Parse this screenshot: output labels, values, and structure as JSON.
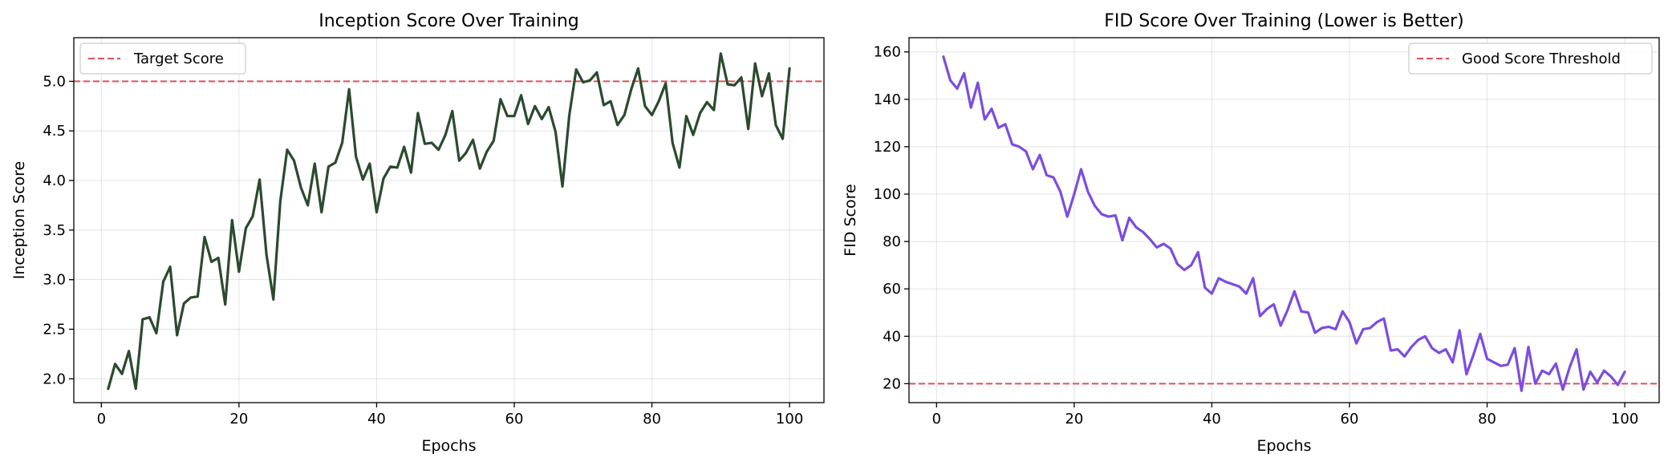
{
  "chart_data": [
    {
      "type": "line",
      "title": "Inception Score Over Training",
      "xlabel": "Epochs",
      "ylabel": "Inception Score",
      "xlim": [
        -4,
        105
      ],
      "ylim": [
        1.76,
        5.44
      ],
      "xticks": [
        0,
        20,
        40,
        60,
        80,
        100
      ],
      "yticks": [
        2.0,
        2.5,
        3.0,
        3.5,
        4.0,
        4.5,
        5.0
      ],
      "ytick_decimals": 1,
      "grid": true,
      "legend_position": "top-left",
      "reference_line": {
        "name": "Target Score",
        "value": 5.0,
        "color": "#e0505a"
      },
      "series": [
        {
          "color": "#2b4a2e",
          "x_start": 1,
          "values": [
            1.9,
            2.15,
            2.05,
            2.28,
            1.9,
            2.6,
            2.62,
            2.46,
            2.98,
            3.13,
            2.44,
            2.76,
            2.82,
            2.83,
            3.43,
            3.18,
            3.22,
            2.75,
            3.6,
            3.08,
            3.52,
            3.64,
            4.01,
            3.25,
            2.8,
            3.79,
            4.31,
            4.2,
            3.93,
            3.75,
            4.17,
            3.68,
            4.14,
            4.18,
            4.38,
            4.92,
            4.24,
            4.01,
            4.17,
            3.68,
            4.02,
            4.14,
            4.13,
            4.34,
            4.08,
            4.68,
            4.37,
            4.38,
            4.31,
            4.46,
            4.7,
            4.2,
            4.28,
            4.41,
            4.12,
            4.29,
            4.4,
            4.82,
            4.65,
            4.65,
            4.86,
            4.57,
            4.75,
            4.62,
            4.74,
            4.49,
            3.94,
            4.66,
            5.12,
            4.99,
            5.01,
            5.09,
            4.76,
            4.8,
            4.56,
            4.66,
            4.92,
            5.13,
            4.75,
            4.66,
            4.8,
            4.98,
            4.38,
            4.13,
            4.65,
            4.46,
            4.68,
            4.79,
            4.71,
            5.28,
            4.97,
            4.96,
            5.04,
            4.52,
            5.18,
            4.85,
            5.08,
            4.56,
            4.42,
            5.13
          ]
        }
      ]
    },
    {
      "type": "line",
      "title": "FID Score Over Training (Lower is Better)",
      "xlabel": "Epochs",
      "ylabel": "FID Score",
      "xlim": [
        -4,
        105
      ],
      "ylim": [
        12,
        166
      ],
      "xticks": [
        0,
        20,
        40,
        60,
        80,
        100
      ],
      "yticks": [
        20,
        40,
        60,
        80,
        100,
        120,
        140,
        160
      ],
      "ytick_decimals": 0,
      "grid": true,
      "legend_position": "top-right",
      "reference_line": {
        "name": "Good Score Threshold",
        "value": 20,
        "color": "#e0505a"
      },
      "series": [
        {
          "color": "#7b4de0",
          "x_start": 1,
          "values": [
            158.0,
            148.0,
            144.5,
            151.0,
            136.5,
            147.0,
            131.5,
            136.0,
            128.0,
            129.5,
            121.0,
            120.0,
            118.0,
            110.5,
            116.5,
            108.0,
            107.0,
            101.0,
            90.5,
            100.0,
            110.5,
            101.0,
            95.0,
            91.5,
            90.5,
            91.0,
            80.5,
            90.0,
            86.0,
            84.0,
            81.0,
            77.5,
            79.0,
            77.0,
            70.5,
            68.0,
            70.0,
            75.5,
            60.5,
            58.0,
            64.5,
            63.0,
            62.0,
            61.0,
            58.0,
            64.5,
            48.5,
            51.5,
            53.5,
            44.5,
            51.0,
            59.0,
            50.5,
            50.0,
            41.5,
            43.5,
            44.0,
            43.0,
            50.5,
            46.0,
            37.0,
            43.0,
            43.5,
            46.0,
            47.5,
            34.0,
            34.5,
            31.5,
            35.5,
            38.5,
            40.0,
            35.0,
            33.0,
            34.5,
            29.0,
            42.5,
            24.0,
            32.0,
            41.0,
            30.5,
            29.0,
            27.5,
            28.0,
            35.0,
            17.0,
            35.5,
            20.0,
            25.5,
            24.0,
            28.5,
            17.5,
            27.0,
            34.5,
            17.5,
            25.0,
            20.5,
            25.5,
            23.0,
            19.5,
            25.0
          ]
        }
      ]
    }
  ]
}
